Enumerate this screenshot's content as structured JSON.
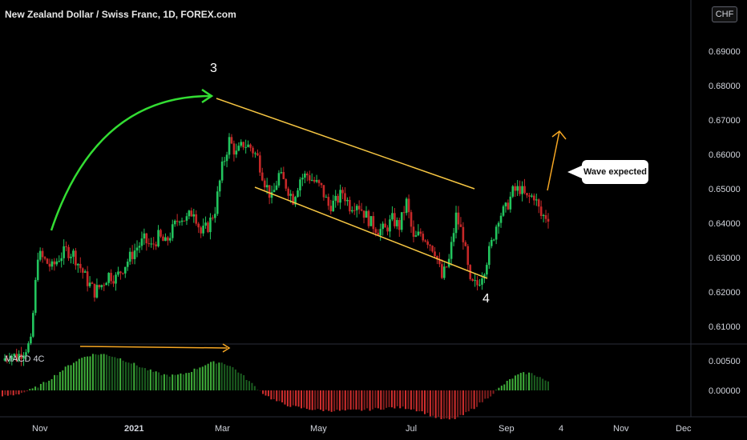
{
  "header": {
    "title": "New Zealand Dollar / Swiss Franc, 1D, FOREX.com",
    "currency_badge": "CHF"
  },
  "annotations": {
    "wave_3": "3",
    "wave_4": "4",
    "callout": "Wave expected"
  },
  "indicator": {
    "label": "MACD 4C"
  },
  "colors": {
    "background": "#000000",
    "up": "#26a69a",
    "candle_up": "#22c55e",
    "candle_down": "#c62828",
    "macd_up": "#2e7d32",
    "macd_down": "#b71c1c",
    "channel": "#f5c542",
    "arc": "#33dd33",
    "projection": "#f5a623"
  },
  "chart_data": [
    {
      "type": "candlestick",
      "title": "New Zealand Dollar / Swiss Franc, 1D, FOREX.com",
      "x_ticks": [
        "Nov",
        "2021",
        "Mar",
        "May",
        "Jul",
        "Sep",
        "4",
        "Nov",
        "Dec"
      ],
      "y_ticks": [
        "0.69000",
        "0.68000",
        "0.67000",
        "0.66000",
        "0.65000",
        "0.64000",
        "0.63000",
        "0.62000",
        "0.61000"
      ],
      "ylim": [
        0.605,
        0.705
      ],
      "key_points": [
        {
          "label": "3",
          "date": "2021-02-25",
          "price": 0.677
        },
        {
          "label": "4",
          "date": "2021-08-20",
          "price": 0.6245
        }
      ],
      "series_close": [
        0.606,
        0.608,
        0.607,
        0.609,
        0.611,
        0.637,
        0.635,
        0.633,
        0.636,
        0.638,
        0.637,
        0.633,
        0.629,
        0.626,
        0.628,
        0.631,
        0.63,
        0.633,
        0.636,
        0.639,
        0.641,
        0.639,
        0.642,
        0.64,
        0.644,
        0.648,
        0.647,
        0.65,
        0.643,
        0.645,
        0.65,
        0.662,
        0.67,
        0.666,
        0.669,
        0.668,
        0.665,
        0.658,
        0.653,
        0.66,
        0.657,
        0.653,
        0.659,
        0.66,
        0.658,
        0.656,
        0.651,
        0.652,
        0.655,
        0.651,
        0.652,
        0.649,
        0.646,
        0.644,
        0.644,
        0.647,
        0.645,
        0.652,
        0.641,
        0.643,
        0.641,
        0.638,
        0.63,
        0.635,
        0.648,
        0.642,
        0.628,
        0.628,
        0.633,
        0.64,
        0.648,
        0.65,
        0.655,
        0.656,
        0.653,
        0.654,
        0.648,
        0.648
      ]
    },
    {
      "type": "bar",
      "title": "MACD 4C",
      "y_ticks": [
        "0.00500",
        "0.00000"
      ],
      "ylim": [
        -0.003,
        0.0065
      ],
      "peaks": [
        {
          "date": "2020-11-25",
          "value": 0.0058
        },
        {
          "date": "2021-02-26",
          "value": 0.0057
        },
        {
          "date": "2021-09-12",
          "value": 0.0038
        }
      ]
    }
  ]
}
